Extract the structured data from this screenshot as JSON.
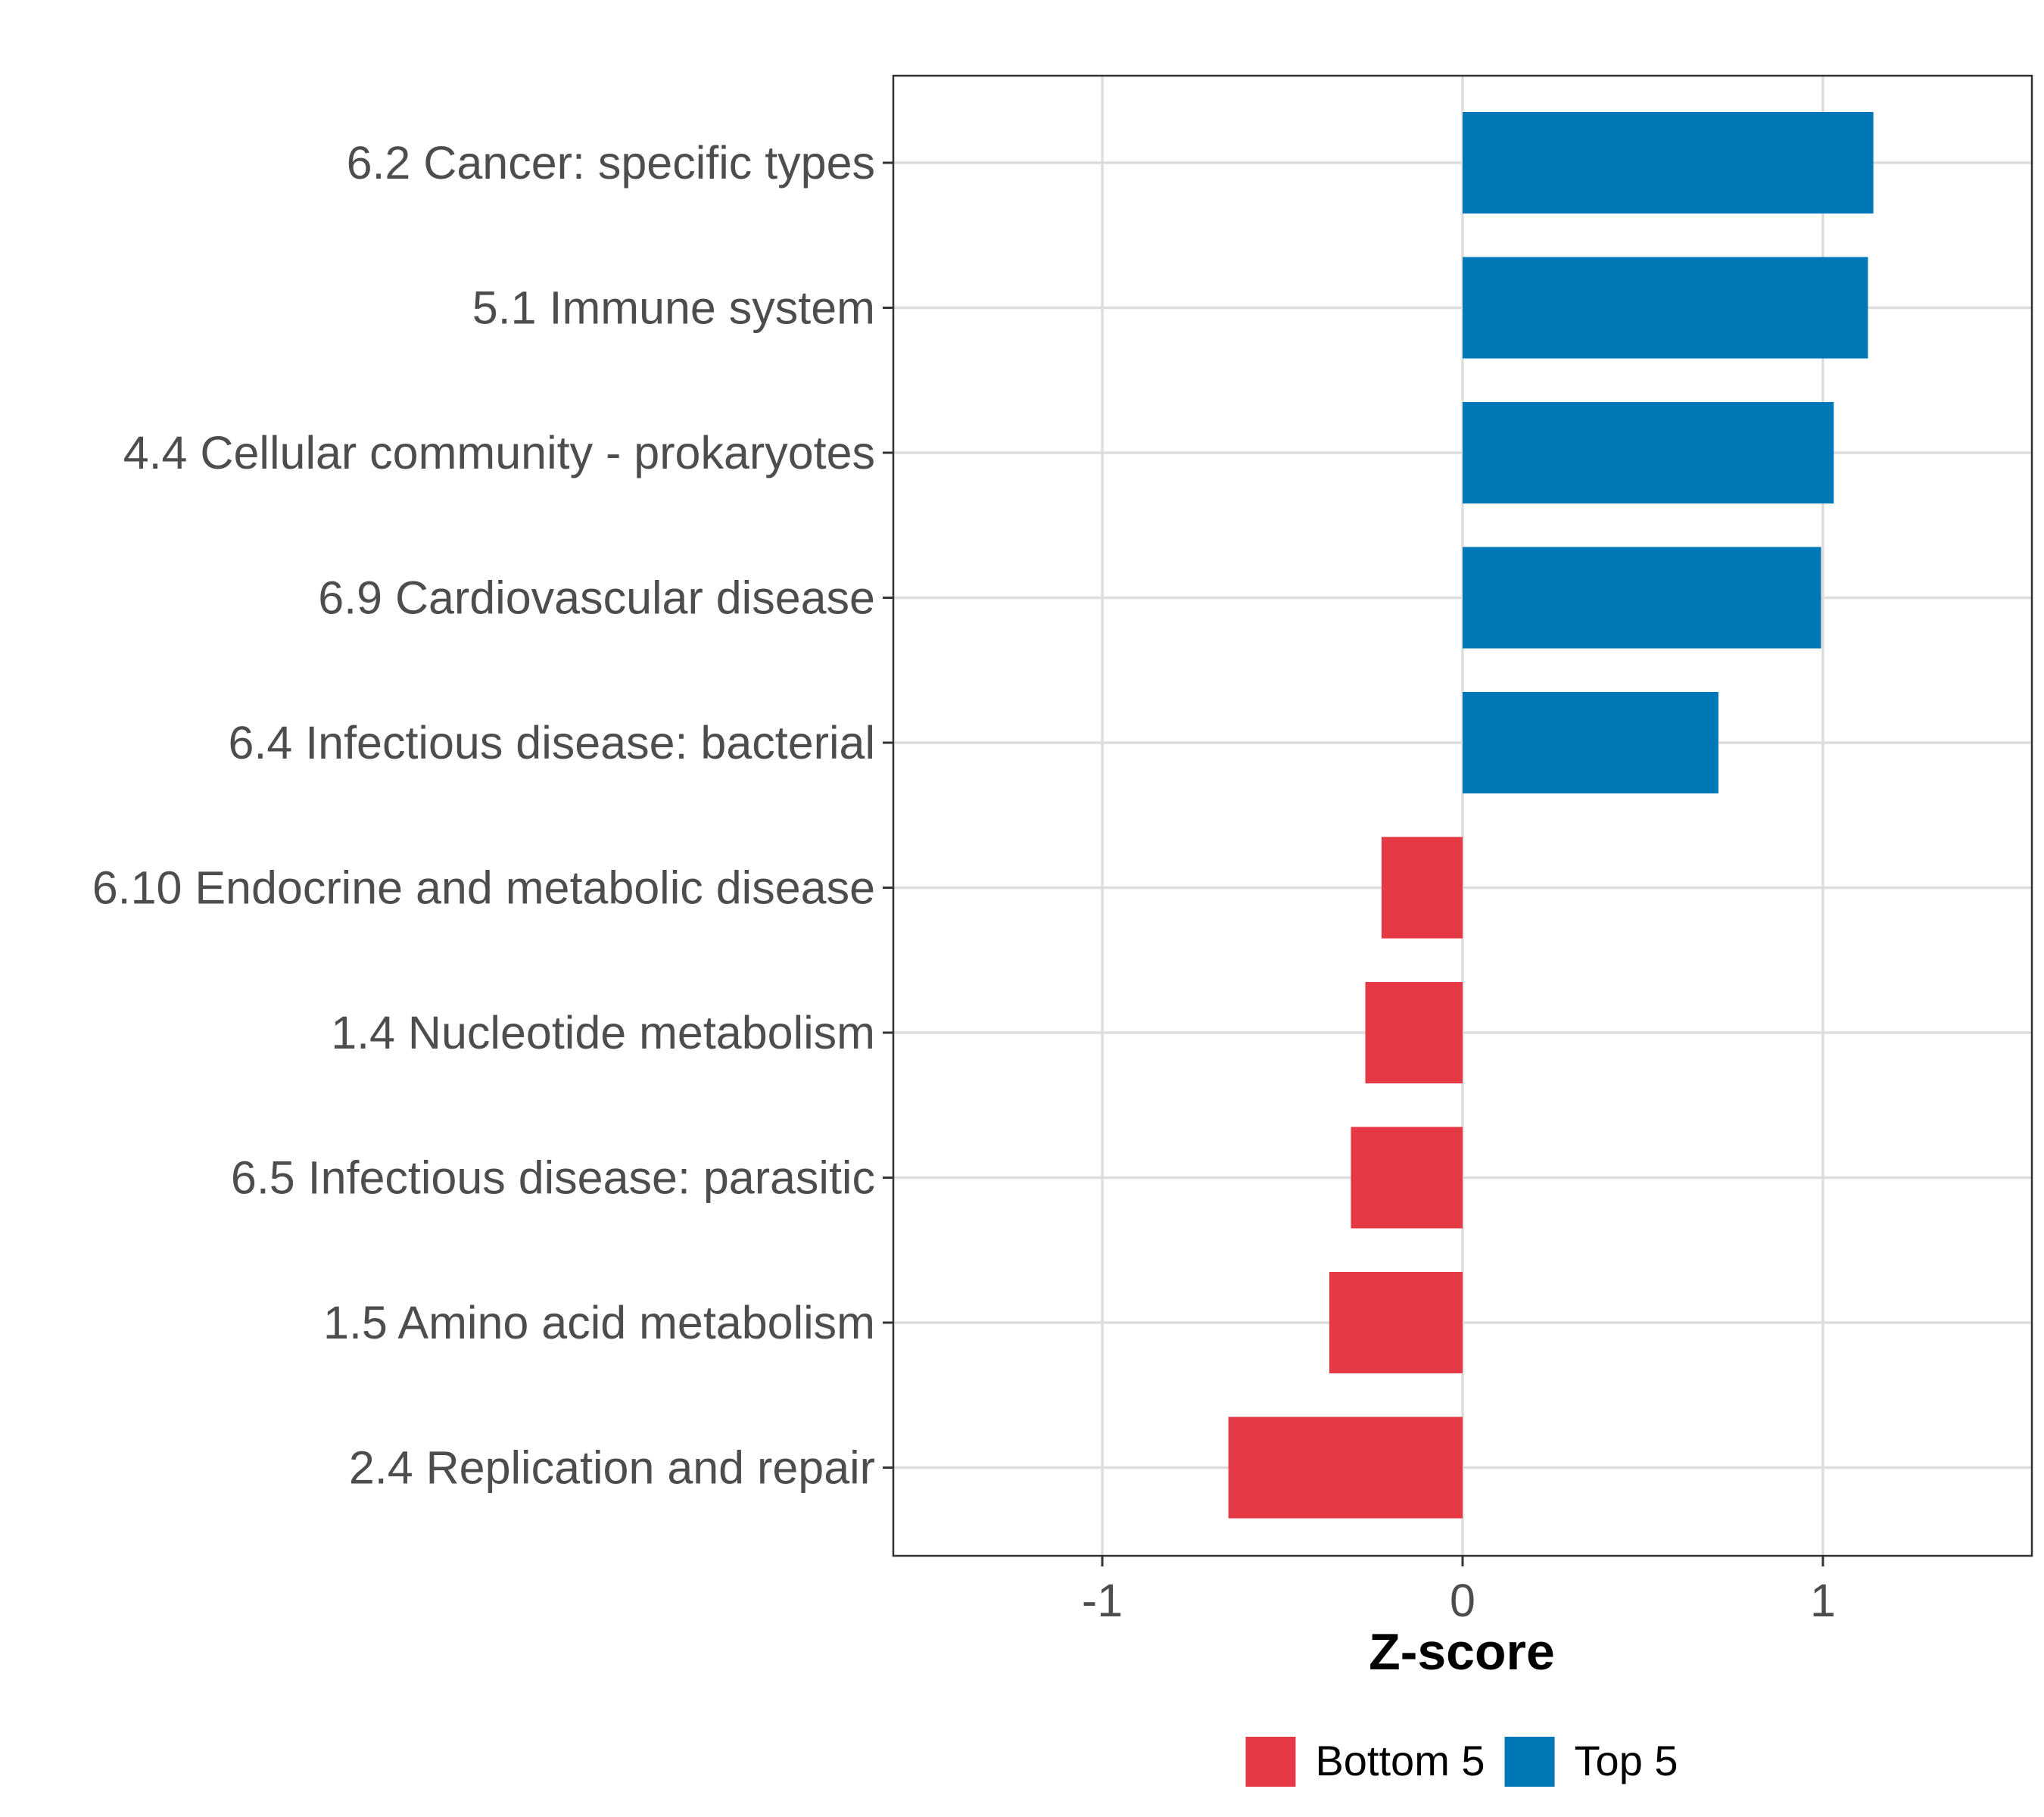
{
  "chart_data": {
    "type": "bar",
    "orientation": "horizontal",
    "title": "",
    "xlabel": "Z-score",
    "ylabel": "",
    "xlim": [
      -1.58,
      1.58
    ],
    "xticks": [
      -1,
      0,
      1
    ],
    "xtick_labels": [
      "-1",
      "0",
      "1"
    ],
    "grid": true,
    "categories": [
      "6.2 Cancer: specific types",
      "5.1 Immune system",
      "4.4 Cellular community - prokaryotes",
      "6.9 Cardiovascular disease",
      "6.4 Infectious disease: bacterial",
      "6.10 Endocrine and metabolic disease",
      "1.4 Nucleotide metabolism",
      "6.5 Infectious disease: parasitic",
      "1.5 Amino acid metabolism",
      "2.4 Replication and repair"
    ],
    "values": [
      1.14,
      1.125,
      1.03,
      0.995,
      0.71,
      -0.225,
      -0.27,
      -0.31,
      -0.37,
      -0.65
    ],
    "groups": [
      "Top 5",
      "Top 5",
      "Top 5",
      "Top 5",
      "Top 5",
      "Bottom 5",
      "Bottom 5",
      "Bottom 5",
      "Bottom 5",
      "Bottom 5"
    ],
    "legend": {
      "position": "bottom",
      "entries": [
        {
          "label": "Bottom 5",
          "color": "#e63946"
        },
        {
          "label": "Top 5",
          "color": "#0077b6"
        }
      ]
    },
    "colors": {
      "Bottom 5": "#e63946",
      "Top 5": "#0077b6"
    }
  }
}
